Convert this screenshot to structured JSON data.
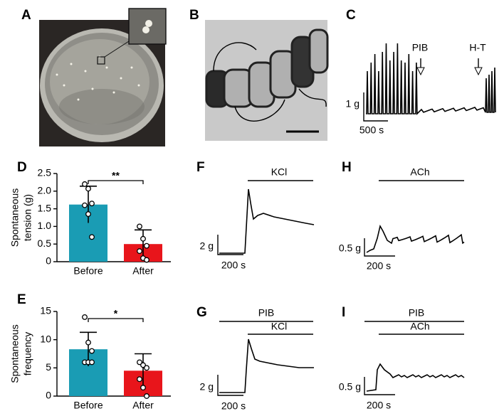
{
  "panel_labels": [
    "A",
    "B",
    "C",
    "D",
    "E",
    "F",
    "G",
    "H",
    "I"
  ],
  "traces": {
    "C": {
      "markers": [
        "PIB",
        "H-T"
      ],
      "y_scale": "1 g",
      "x_scale": "500 s"
    },
    "F": {
      "bars": [
        "KCl"
      ],
      "y_scale": "2 g",
      "x_scale": "200 s"
    },
    "G": {
      "bars": [
        "PIB",
        "KCl"
      ],
      "y_scale": "2 g",
      "x_scale": "200 s"
    },
    "H": {
      "bars": [
        "ACh"
      ],
      "y_scale": "0.5 g",
      "x_scale": "200 s"
    },
    "I": {
      "bars": [
        "PIB",
        "ACh"
      ],
      "y_scale": "0.5 g",
      "x_scale": "200 s"
    }
  },
  "chart_data": [
    {
      "type": "bar",
      "ylabel": [
        "Spontaneous",
        "tension (g)"
      ],
      "categories": [
        "Before",
        "After"
      ],
      "values": [
        1.62,
        0.5
      ],
      "errors": [
        0.52,
        0.4
      ],
      "colors": [
        "#1a9cb4",
        "#e8151b"
      ],
      "points": [
        [
          2.2,
          2.07,
          1.65,
          1.6,
          1.35,
          0.7
        ],
        [
          1.0,
          0.65,
          0.45,
          0.3,
          0.1,
          0.05
        ]
      ],
      "significance": "**",
      "ylim": [
        0,
        2.5
      ],
      "yticks": [
        0,
        0.5,
        {
          "value": 1,
          "label": "1.0"
        },
        1.5,
        {
          "value": 2,
          "label": "2.0"
        },
        2.5
      ]
    },
    {
      "type": "bar",
      "ylabel": [
        "Spontaneous",
        "frequency"
      ],
      "categories": [
        "Before",
        "After"
      ],
      "values": [
        8.3,
        4.5
      ],
      "errors": [
        3.0,
        3.0
      ],
      "colors": [
        "#1a9cb4",
        "#e8151b"
      ],
      "points": [
        [
          14,
          9.5,
          8,
          6,
          6,
          6
        ],
        [
          6,
          5.5,
          5,
          3,
          1.5,
          0
        ]
      ],
      "significance": "*",
      "ylim": [
        0,
        15
      ],
      "yticks": [
        0,
        5,
        10,
        15
      ]
    }
  ]
}
